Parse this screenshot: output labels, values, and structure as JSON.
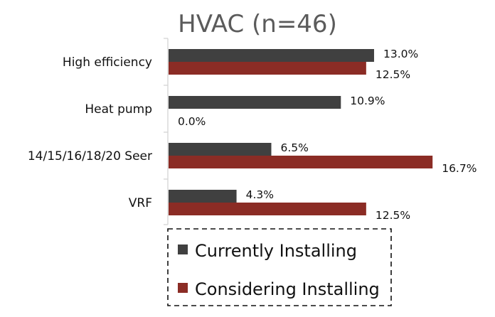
{
  "chart_data": {
    "type": "bar",
    "orientation": "horizontal",
    "title": "HVAC (n=46)",
    "categories": [
      "High efficiency",
      "Heat pump",
      "14/15/16/18/20 Seer",
      "VRF"
    ],
    "series": [
      {
        "name": "Currently Installing",
        "values": [
          13.0,
          10.9,
          6.5,
          4.3
        ],
        "labels": [
          "13.0%",
          "10.9%",
          "6.5%",
          "4.3%"
        ],
        "color": "#404040"
      },
      {
        "name": "Considering Installing",
        "values": [
          12.5,
          0.0,
          16.7,
          12.5
        ],
        "labels": [
          "12.5%",
          "0.0%",
          "16.7%",
          "12.5%"
        ],
        "color": "#8b2c25"
      }
    ],
    "xlim": [
      0,
      17.5
    ],
    "grid": false,
    "legend_position": "bottom-right",
    "legend_border": "dashed"
  }
}
